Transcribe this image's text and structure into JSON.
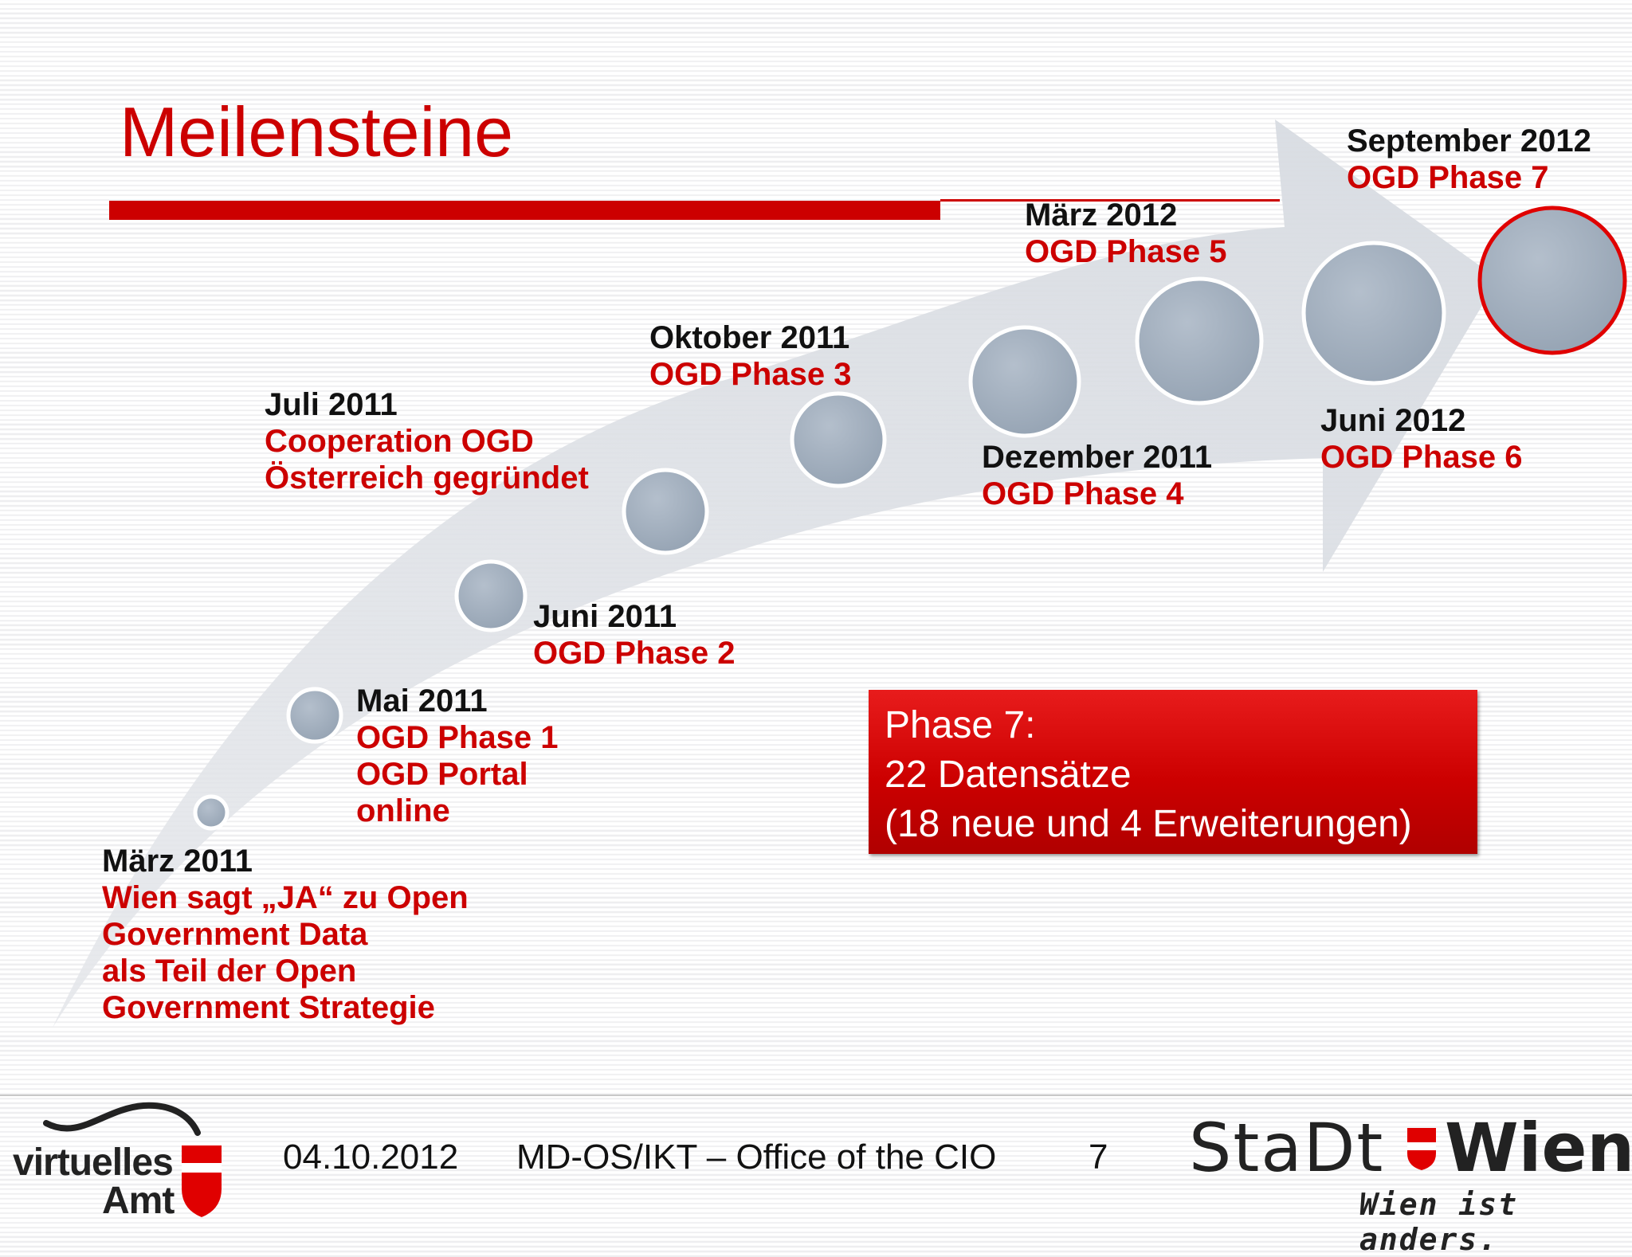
{
  "slide": {
    "title": "Meilensteine",
    "accent_color": "#cc0000"
  },
  "milestones": [
    {
      "date": "März 2011",
      "desc": [
        "Wien sagt „JA“ zu Open",
        "Government Data",
        "als Teil der Open",
        "Government Strategie"
      ]
    },
    {
      "date": "Mai 2011",
      "desc": [
        "OGD Phase 1",
        "OGD Portal",
        "online"
      ]
    },
    {
      "date": "Juli 2011",
      "desc": [
        "Cooperation OGD",
        "Österreich gegründet"
      ]
    },
    {
      "date": "Juni 2011",
      "desc": [
        "OGD Phase 2"
      ]
    },
    {
      "date": "Oktober 2011",
      "desc": [
        "OGD Phase 3"
      ]
    },
    {
      "date": "Dezember 2011",
      "desc": [
        "OGD Phase 4"
      ]
    },
    {
      "date": "März 2012",
      "desc": [
        "OGD Phase 5"
      ]
    },
    {
      "date": "Juni 2012",
      "desc": [
        "OGD Phase 6"
      ]
    },
    {
      "date": "September 2012",
      "desc": [
        "OGD Phase 7"
      ]
    }
  ],
  "infobox": {
    "lines": [
      "Phase 7:",
      "22 Datensätze",
      "(18 neue und 4 Erweiterungen)"
    ]
  },
  "footer": {
    "date": "04.10.2012",
    "department": "MD-OS/IKT – Office of the CIO",
    "page_number": "7"
  },
  "logos": {
    "virtuelles_amt": [
      "virtuelles",
      "Amt"
    ],
    "stadt_wien": {
      "word1": "StaDt",
      "word2": "Wien",
      "slogan": "Wien ist anders."
    }
  }
}
